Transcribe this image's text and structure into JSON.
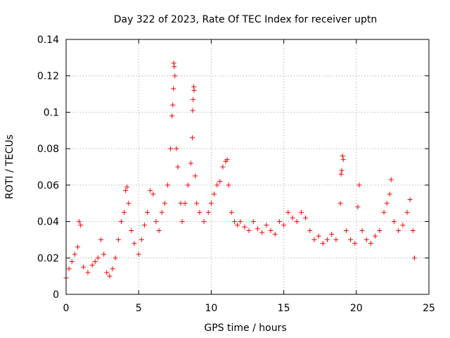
{
  "chart_data": {
    "type": "scatter",
    "title": "Day 322 of 2023, Rate Of TEC Index for receiver uptn",
    "xlabel": "GPS time / hours",
    "ylabel": "ROTI / TECUs",
    "xlim": [
      0,
      25
    ],
    "ylim": [
      0,
      0.14
    ],
    "xticks": [
      0,
      5,
      10,
      15,
      20,
      25
    ],
    "xtick_labels": [
      "0",
      "5",
      "10",
      "15",
      "20",
      "25"
    ],
    "yticks": [
      0,
      0.02,
      0.04,
      0.06,
      0.08,
      0.1,
      0.12,
      0.14
    ],
    "ytick_labels": [
      "0",
      "0.02",
      "0.04",
      "0.06",
      "0.08",
      "0.1",
      "0.12",
      "0.14"
    ],
    "grid": true,
    "marker": "+",
    "color": "#ff0000",
    "series": [
      {
        "name": "ROTI",
        "points": [
          [
            0.0,
            0.009
          ],
          [
            0.2,
            0.014
          ],
          [
            0.4,
            0.018
          ],
          [
            0.6,
            0.022
          ],
          [
            0.8,
            0.026
          ],
          [
            0.9,
            0.04
          ],
          [
            1.0,
            0.038
          ],
          [
            1.2,
            0.015
          ],
          [
            1.5,
            0.012
          ],
          [
            1.8,
            0.016
          ],
          [
            2.0,
            0.018
          ],
          [
            2.2,
            0.02
          ],
          [
            2.4,
            0.03
          ],
          [
            2.6,
            0.022
          ],
          [
            2.8,
            0.012
          ],
          [
            3.0,
            0.01
          ],
          [
            3.2,
            0.014
          ],
          [
            3.4,
            0.02
          ],
          [
            3.6,
            0.03
          ],
          [
            3.8,
            0.04
          ],
          [
            4.0,
            0.045
          ],
          [
            4.1,
            0.057
          ],
          [
            4.2,
            0.059
          ],
          [
            4.3,
            0.05
          ],
          [
            4.5,
            0.035
          ],
          [
            4.7,
            0.028
          ],
          [
            5.0,
            0.022
          ],
          [
            5.2,
            0.03
          ],
          [
            5.4,
            0.038
          ],
          [
            5.6,
            0.045
          ],
          [
            5.8,
            0.057
          ],
          [
            6.0,
            0.055
          ],
          [
            6.2,
            0.04
          ],
          [
            6.4,
            0.035
          ],
          [
            6.6,
            0.045
          ],
          [
            6.8,
            0.05
          ],
          [
            7.0,
            0.06
          ],
          [
            7.2,
            0.08
          ],
          [
            7.3,
            0.098
          ],
          [
            7.35,
            0.104
          ],
          [
            7.4,
            0.113
          ],
          [
            7.42,
            0.127
          ],
          [
            7.45,
            0.125
          ],
          [
            7.5,
            0.12
          ],
          [
            7.6,
            0.08
          ],
          [
            7.7,
            0.07
          ],
          [
            7.9,
            0.05
          ],
          [
            8.0,
            0.04
          ],
          [
            8.2,
            0.05
          ],
          [
            8.4,
            0.06
          ],
          [
            8.6,
            0.072
          ],
          [
            8.7,
            0.086
          ],
          [
            8.72,
            0.101
          ],
          [
            8.75,
            0.107
          ],
          [
            8.8,
            0.114
          ],
          [
            8.82,
            0.112
          ],
          [
            8.9,
            0.065
          ],
          [
            9.0,
            0.05
          ],
          [
            9.2,
            0.045
          ],
          [
            9.5,
            0.04
          ],
          [
            9.8,
            0.045
          ],
          [
            10.0,
            0.05
          ],
          [
            10.2,
            0.055
          ],
          [
            10.4,
            0.06
          ],
          [
            10.6,
            0.062
          ],
          [
            10.8,
            0.07
          ],
          [
            11.0,
            0.073
          ],
          [
            11.1,
            0.074
          ],
          [
            11.2,
            0.06
          ],
          [
            11.4,
            0.045
          ],
          [
            11.6,
            0.04
          ],
          [
            11.8,
            0.038
          ],
          [
            12.0,
            0.04
          ],
          [
            12.3,
            0.037
          ],
          [
            12.6,
            0.035
          ],
          [
            12.9,
            0.04
          ],
          [
            13.2,
            0.036
          ],
          [
            13.5,
            0.034
          ],
          [
            13.8,
            0.038
          ],
          [
            14.1,
            0.035
          ],
          [
            14.4,
            0.033
          ],
          [
            14.7,
            0.04
          ],
          [
            15.0,
            0.038
          ],
          [
            15.3,
            0.045
          ],
          [
            15.6,
            0.042
          ],
          [
            15.9,
            0.04
          ],
          [
            16.2,
            0.045
          ],
          [
            16.5,
            0.042
          ],
          [
            16.8,
            0.035
          ],
          [
            17.1,
            0.03
          ],
          [
            17.4,
            0.032
          ],
          [
            17.7,
            0.028
          ],
          [
            18.0,
            0.03
          ],
          [
            18.3,
            0.033
          ],
          [
            18.6,
            0.03
          ],
          [
            18.9,
            0.05
          ],
          [
            18.95,
            0.066
          ],
          [
            19.0,
            0.068
          ],
          [
            19.05,
            0.076
          ],
          [
            19.1,
            0.074
          ],
          [
            19.3,
            0.035
          ],
          [
            19.6,
            0.03
          ],
          [
            19.9,
            0.028
          ],
          [
            20.1,
            0.048
          ],
          [
            20.2,
            0.06
          ],
          [
            20.4,
            0.035
          ],
          [
            20.7,
            0.03
          ],
          [
            21.0,
            0.028
          ],
          [
            21.3,
            0.032
          ],
          [
            21.6,
            0.035
          ],
          [
            21.9,
            0.045
          ],
          [
            22.1,
            0.05
          ],
          [
            22.3,
            0.055
          ],
          [
            22.4,
            0.063
          ],
          [
            22.6,
            0.04
          ],
          [
            22.9,
            0.035
          ],
          [
            23.2,
            0.038
          ],
          [
            23.5,
            0.045
          ],
          [
            23.7,
            0.052
          ],
          [
            23.9,
            0.035
          ],
          [
            24.0,
            0.02
          ]
        ]
      }
    ]
  }
}
